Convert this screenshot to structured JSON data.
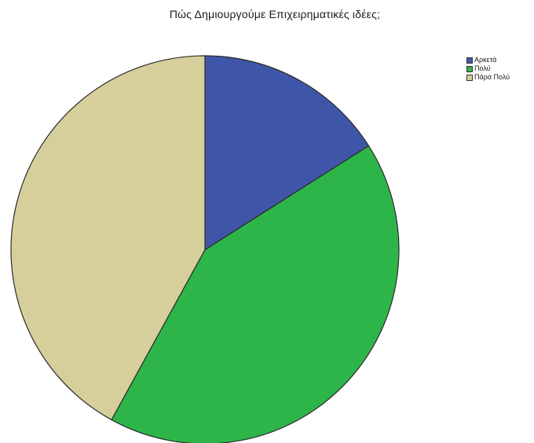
{
  "chart_data": {
    "type": "pie",
    "title": "Πώς Δημιουργούμε Επιχειρηματικές ιδέες;",
    "legend_position": "top-right",
    "start_angle_deg": 0,
    "direction": "clockwise",
    "slices": [
      {
        "label": "Αρκετά",
        "value": 16,
        "color": "#3f56a8"
      },
      {
        "label": "Πολύ",
        "value": 42,
        "color": "#2db54a"
      },
      {
        "label": "Πάρα Πολύ",
        "value": 42,
        "color": "#d6cf9c"
      }
    ]
  }
}
